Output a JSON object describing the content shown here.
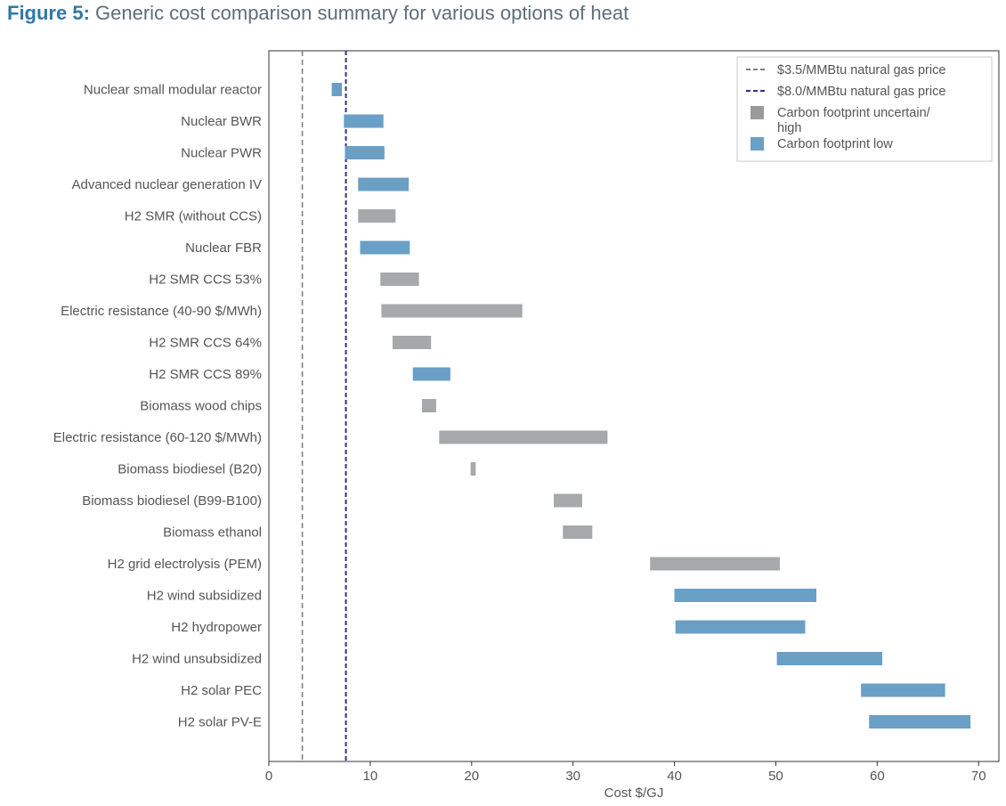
{
  "figure": {
    "label": "Figure 5:",
    "caption": "Generic cost comparison summary for various options of heat"
  },
  "colors": {
    "low": "#6a9fc6",
    "uncertain": "#a6a8aa",
    "line_35": "#7f7f7f",
    "line_80": "#2f2f8a"
  },
  "chart_data": {
    "type": "bar",
    "orientation": "horizontal-range",
    "xlabel": "Cost $/GJ",
    "ylabel": "",
    "xlim": [
      0,
      72
    ],
    "xticks": [
      0,
      10,
      20,
      30,
      40,
      50,
      60,
      70
    ],
    "grid": false,
    "legend_position": "top-right",
    "reference_lines": [
      {
        "name": "$3.5/MMBtu natural gas price",
        "x": 3.3,
        "style": "dashed",
        "color": "#7f7f7f"
      },
      {
        "name": "$8.0/MMBtu natural gas price",
        "x": 7.6,
        "style": "dashed",
        "color": "#2f2f8a"
      }
    ],
    "legend": [
      {
        "label_lines": [
          "$3.5/MMBtu natural gas price"
        ],
        "kind": "line",
        "color": "#7f7f7f"
      },
      {
        "label_lines": [
          "$8.0/MMBtu natural gas price"
        ],
        "kind": "line",
        "color": "#2f2f8a"
      },
      {
        "label_lines": [
          "Carbon footprint uncertain/",
          "high"
        ],
        "kind": "patch",
        "color": "#9a9a9a"
      },
      {
        "label_lines": [
          "Carbon footprint low"
        ],
        "kind": "patch",
        "color": "#6a9fc6"
      }
    ],
    "categories": [
      "Nuclear small modular reactor",
      "Nuclear BWR",
      "Nuclear PWR",
      "Advanced nuclear generation IV",
      "H2 SMR (without CCS)",
      "Nuclear FBR",
      "H2 SMR CCS 53%",
      "Electric resistance (40-90 $/MWh)",
      "H2 SMR CCS 64%",
      "H2 SMR CCS 89%",
      "Biomass wood chips",
      "Electric resistance (60-120 $/MWh)",
      "Biomass biodiesel (B20)",
      "Biomass biodiesel (B99-B100)",
      "Biomass ethanol",
      "H2 grid electrolysis (PEM)",
      "H2 wind subsidized",
      "H2 hydropower",
      "H2 wind unsubsidized",
      "H2 solar PEC",
      "H2 solar PV-E"
    ],
    "ranges": [
      {
        "min": 6.2,
        "max": 7.2,
        "footprint": "low"
      },
      {
        "min": 7.4,
        "max": 11.3,
        "footprint": "low"
      },
      {
        "min": 7.5,
        "max": 11.4,
        "footprint": "low"
      },
      {
        "min": 8.8,
        "max": 13.8,
        "footprint": "low"
      },
      {
        "min": 8.8,
        "max": 12.5,
        "footprint": "uncertain"
      },
      {
        "min": 9.0,
        "max": 13.9,
        "footprint": "low"
      },
      {
        "min": 11.0,
        "max": 14.8,
        "footprint": "uncertain"
      },
      {
        "min": 11.1,
        "max": 25.0,
        "footprint": "uncertain"
      },
      {
        "min": 12.2,
        "max": 16.0,
        "footprint": "uncertain"
      },
      {
        "min": 14.2,
        "max": 17.9,
        "footprint": "low"
      },
      {
        "min": 15.1,
        "max": 16.5,
        "footprint": "uncertain"
      },
      {
        "min": 16.8,
        "max": 33.4,
        "footprint": "uncertain"
      },
      {
        "min": 19.9,
        "max": 20.4,
        "footprint": "uncertain"
      },
      {
        "min": 28.1,
        "max": 30.9,
        "footprint": "uncertain"
      },
      {
        "min": 29.0,
        "max": 31.9,
        "footprint": "uncertain"
      },
      {
        "min": 37.6,
        "max": 50.4,
        "footprint": "uncertain"
      },
      {
        "min": 40.0,
        "max": 54.0,
        "footprint": "low"
      },
      {
        "min": 40.1,
        "max": 52.9,
        "footprint": "low"
      },
      {
        "min": 50.1,
        "max": 60.5,
        "footprint": "low"
      },
      {
        "min": 58.4,
        "max": 66.7,
        "footprint": "low"
      },
      {
        "min": 59.2,
        "max": 69.2,
        "footprint": "low"
      }
    ]
  }
}
